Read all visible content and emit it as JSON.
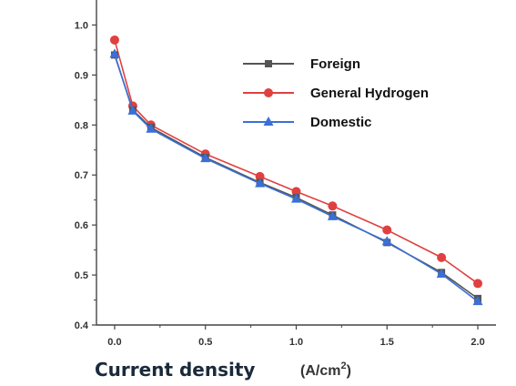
{
  "chart_data": {
    "type": "line",
    "title": "",
    "xlabel": "Current density",
    "xlabel_unit": "(A/cm",
    "xlabel_unit_sup": "2",
    "xlabel_unit_close": ")",
    "ylabel": "",
    "xlim": [
      -0.1,
      2.1
    ],
    "ylim": [
      0.4,
      1.05
    ],
    "xticks": [
      "0.0",
      "0.5",
      "1.0",
      "1.5",
      "2.0"
    ],
    "xtick_values": [
      0.0,
      0.5,
      1.0,
      1.5,
      2.0
    ],
    "yticks": [
      "0.4",
      "0.5",
      "0.6",
      "0.7",
      "0.8",
      "0.9",
      "1.0"
    ],
    "ytick_values": [
      0.4,
      0.5,
      0.6,
      0.7,
      0.8,
      0.9,
      1.0
    ],
    "grid": false,
    "legend_position": "top-right",
    "series": [
      {
        "name": "Foreign",
        "color": "#555555",
        "marker": "square",
        "x": [
          0.0,
          0.1,
          0.2,
          0.5,
          0.8,
          1.0,
          1.2,
          1.5,
          1.8,
          2.0
        ],
        "y": [
          0.94,
          0.83,
          0.795,
          0.735,
          0.685,
          0.655,
          0.62,
          0.565,
          0.505,
          0.453
        ]
      },
      {
        "name": "General Hydrogen",
        "color": "#e04040",
        "marker": "circle",
        "x": [
          0.0,
          0.1,
          0.2,
          0.5,
          0.8,
          1.0,
          1.2,
          1.5,
          1.8,
          2.0
        ],
        "y": [
          0.97,
          0.838,
          0.8,
          0.742,
          0.697,
          0.667,
          0.638,
          0.59,
          0.535,
          0.483
        ]
      },
      {
        "name": "Domestic",
        "color": "#3a6fd8",
        "marker": "triangle",
        "x": [
          0.0,
          0.1,
          0.2,
          0.5,
          0.8,
          1.0,
          1.2,
          1.5,
          1.8,
          2.0
        ],
        "y": [
          0.942,
          0.828,
          0.792,
          0.733,
          0.683,
          0.652,
          0.617,
          0.567,
          0.502,
          0.447
        ]
      }
    ]
  }
}
